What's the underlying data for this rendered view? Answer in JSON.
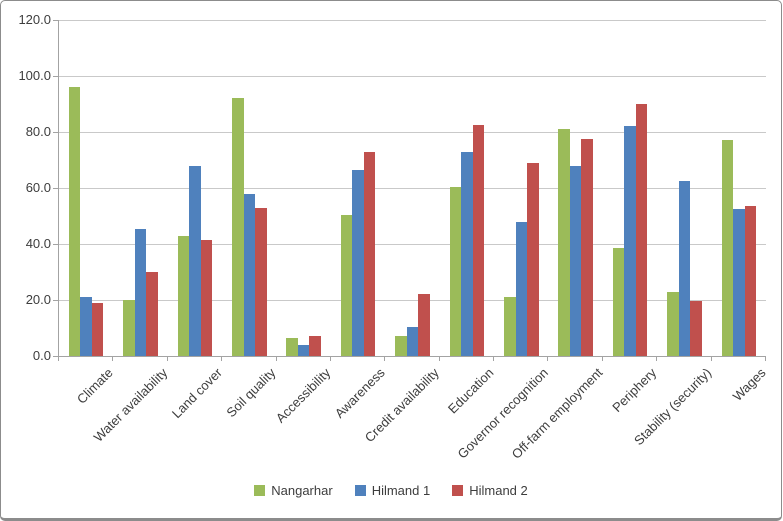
{
  "chart_data": {
    "type": "bar",
    "title": "",
    "xlabel": "",
    "ylabel": "",
    "ylim": [
      0,
      120
    ],
    "grid": true,
    "legend_position": "bottom",
    "categories": [
      "Climate",
      "Water availability",
      "Land cover",
      "Soil quality",
      "Accessibility",
      "Awareness",
      "Credit availability",
      "Education",
      "Governor recognition",
      "Off-farm employment",
      "Periphery",
      "Stability (security)",
      "Wages"
    ],
    "series": [
      {
        "name": "Nangarhar",
        "color": "#9BBB59",
        "values": [
          96,
          20,
          43,
          92,
          6.5,
          50.5,
          7,
          60.5,
          21,
          81,
          38.5,
          23,
          77
        ]
      },
      {
        "name": "Hilmand 1",
        "color": "#4F81BD",
        "values": [
          21,
          45.5,
          68,
          58,
          4,
          66.5,
          10.5,
          73,
          48,
          68,
          82,
          62.5,
          52.5
        ]
      },
      {
        "name": "Hilmand 2",
        "color": "#C0504D",
        "values": [
          19,
          30,
          41.5,
          53,
          7,
          73,
          22,
          82.5,
          69,
          77.5,
          90,
          19.5,
          53.5
        ]
      }
    ],
    "y_ticks": [
      {
        "value": 120,
        "label": "120.0"
      },
      {
        "value": 100,
        "label": "100.0"
      },
      {
        "value": 80,
        "label": "80.0"
      },
      {
        "value": 60,
        "label": "60.0"
      },
      {
        "value": 40,
        "label": "40.0"
      },
      {
        "value": 20,
        "label": "20.0"
      },
      {
        "value": 0,
        "label": "0.0"
      }
    ]
  },
  "colors": {
    "background": "#FFFFFF",
    "gridline": "#C9C9C9",
    "axis": "#A3A3A3",
    "text": "#3D3D3D",
    "frame_border": "#8C8C8C"
  }
}
